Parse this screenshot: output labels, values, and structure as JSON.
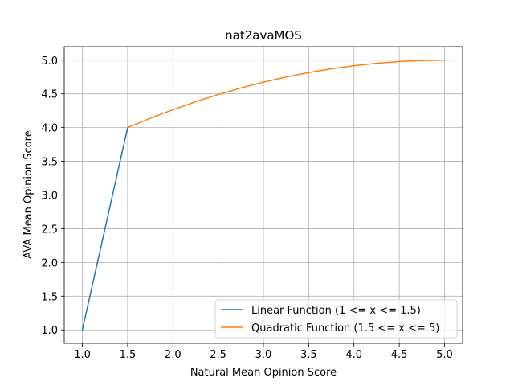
{
  "chart_data": {
    "type": "line",
    "title": "nat2avaMOS",
    "xlabel": "Natural Mean Opinion Score",
    "ylabel": "AVA Mean Opinion Score",
    "xlim": [
      0.8,
      5.2
    ],
    "ylim": [
      0.8,
      5.2
    ],
    "xticks": [
      "1.0",
      "1.5",
      "2.0",
      "2.5",
      "3.0",
      "3.5",
      "4.0",
      "4.5",
      "5.0"
    ],
    "yticks": [
      "1.0",
      "1.5",
      "2.0",
      "2.5",
      "3.0",
      "3.5",
      "4.0",
      "4.5",
      "5.0"
    ],
    "grid": true,
    "legend_position": "lower-right",
    "series": [
      {
        "name": "Linear Function (1 <= x <= 1.5)",
        "color": "#1f77b4",
        "x": [
          1.0,
          1.5
        ],
        "y": [
          1.0,
          4.0
        ]
      },
      {
        "name": "Quadratic Function (1.5 <= x <= 5)",
        "color": "#ff7f0e",
        "x": [
          1.5,
          1.75,
          2.0,
          2.25,
          2.5,
          2.75,
          3.0,
          3.25,
          3.5,
          3.75,
          4.0,
          4.25,
          4.5,
          4.75,
          5.0
        ],
        "y": [
          4.0,
          4.138,
          4.265,
          4.383,
          4.49,
          4.587,
          4.673,
          4.75,
          4.816,
          4.872,
          4.918,
          4.954,
          4.98,
          4.995,
          5.0
        ]
      }
    ]
  }
}
